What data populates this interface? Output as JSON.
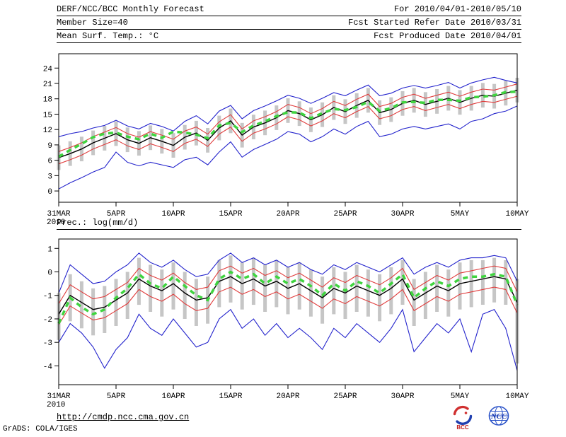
{
  "header": {
    "rows": [
      {
        "left": "DERF/NCC/BCC Monthly Forecast",
        "right": "For 2010/04/01-2010/05/10"
      },
      {
        "left": "Member Size=40",
        "right": "Fcst Started Refer Date 2010/03/31"
      },
      {
        "left": "Mean Surf. Temp.: °C",
        "right": "Fcst Produced Date 2010/04/01"
      }
    ]
  },
  "panel2_title": "Prec.: log(mm/d)",
  "footer": {
    "url": "http://cmdp.ncc.cma.gov.cn",
    "credit": "GrADS: COLA/IGES",
    "bcc_label": "BCC",
    "ncc_label": "NCC"
  },
  "colors": {
    "envelope": "#2222cc",
    "quartile": "#e03c3c",
    "mean": "#000000",
    "obs": "#3fd43f",
    "bar": "#c6c6c6",
    "frame": "#000000"
  },
  "chart_data": [
    {
      "type": "line",
      "title": "Mean Surf. Temp.: °C",
      "x_tick_labels": [
        "31MAR",
        "5APR",
        "10APR",
        "15APR",
        "20APR",
        "25APR",
        "30APR",
        "5MAY",
        "10MAY"
      ],
      "x_tick_positions": [
        0,
        5,
        10,
        15,
        20,
        25,
        30,
        35,
        40
      ],
      "x_sub_label": "2010",
      "y_ticks": [
        0,
        3,
        6,
        9,
        12,
        15,
        18,
        21,
        24
      ],
      "ylim": [
        -2.2,
        26.8
      ],
      "grid": false,
      "legend": "none",
      "series": [
        {
          "name": "ensemble-max",
          "color_key": "envelope",
          "style": "solid",
          "values": [
            10.6,
            11.2,
            11.6,
            12.3,
            12.8,
            13.8,
            12.7,
            12.1,
            13.2,
            12.6,
            11.7,
            13.6,
            14.7,
            13.1,
            15.6,
            16.7,
            14.1,
            15.7,
            16.6,
            17.6,
            18.7,
            18.1,
            17.1,
            18.1,
            19.2,
            18.6,
            19.7,
            20.7,
            18.6,
            19.1,
            20.1,
            20.6,
            20.1,
            20.6,
            21.2,
            20.1,
            21.1,
            21.7,
            22.2,
            21.6,
            21.1
          ]
        },
        {
          "name": "upper-quartile",
          "color_key": "quartile",
          "style": "solid",
          "values": [
            7.7,
            8.5,
            9.4,
            10.6,
            11.5,
            12.4,
            11.2,
            10.5,
            11.6,
            10.9,
            10.1,
            11.7,
            12.5,
            11.1,
            13.5,
            14.9,
            12.1,
            13.7,
            14.5,
            15.5,
            16.9,
            16.3,
            15.1,
            16.1,
            17.5,
            16.7,
            17.9,
            18.9,
            16.5,
            17.1,
            18.3,
            18.9,
            18.1,
            18.7,
            19.3,
            18.5,
            19.3,
            19.9,
            19.7,
            20.3,
            20.9
          ]
        },
        {
          "name": "ensemble-mean",
          "color_key": "mean",
          "style": "solid",
          "values": [
            6.5,
            7.3,
            8.2,
            9.4,
            10.3,
            11.2,
            10.0,
            9.3,
            10.4,
            9.7,
            8.9,
            10.5,
            11.3,
            9.9,
            12.3,
            13.7,
            10.9,
            12.5,
            13.3,
            14.3,
            15.7,
            15.1,
            13.9,
            14.9,
            16.3,
            15.5,
            16.7,
            17.7,
            15.3,
            15.9,
            17.1,
            17.7,
            16.9,
            17.5,
            18.1,
            17.3,
            18.1,
            18.7,
            18.5,
            19.1,
            19.7
          ]
        },
        {
          "name": "lower-quartile",
          "color_key": "quartile",
          "style": "solid",
          "values": [
            5.3,
            6.1,
            7.0,
            8.2,
            9.1,
            10.0,
            8.8,
            8.1,
            9.2,
            8.5,
            7.7,
            9.3,
            10.1,
            8.7,
            11.1,
            12.5,
            9.7,
            11.3,
            12.1,
            13.1,
            14.5,
            13.9,
            12.7,
            13.7,
            15.1,
            14.3,
            15.5,
            16.5,
            14.1,
            14.7,
            15.9,
            16.5,
            15.7,
            16.3,
            16.9,
            16.1,
            16.9,
            17.5,
            17.3,
            17.9,
            18.5
          ]
        },
        {
          "name": "ensemble-min",
          "color_key": "envelope",
          "style": "solid",
          "values": [
            0.4,
            1.6,
            2.6,
            3.7,
            4.6,
            7.6,
            5.6,
            4.9,
            5.6,
            5.1,
            4.6,
            6.1,
            6.6,
            5.1,
            7.6,
            9.6,
            6.6,
            8.1,
            9.1,
            10.1,
            11.6,
            11.1,
            9.6,
            10.6,
            12.1,
            11.1,
            12.6,
            13.6,
            10.6,
            11.1,
            12.1,
            12.6,
            12.1,
            12.6,
            13.1,
            12.1,
            13.6,
            14.1,
            15.1,
            15.6,
            16.6
          ]
        },
        {
          "name": "observation",
          "color_key": "obs",
          "style": "dashed",
          "values": [
            6.7,
            8.0,
            9.2,
            10.5,
            11.2,
            11.4,
            10.6,
            10.1,
            11.2,
            10.4,
            11.6,
            11.4,
            11.0,
            10.3,
            12.8,
            13.3,
            11.5,
            12.8,
            13.6,
            14.6,
            15.4,
            15.3,
            14.2,
            15.2,
            16.0,
            15.8,
            16.4,
            17.4,
            15.6,
            16.2,
            17.3,
            17.4,
            17.2,
            17.8,
            17.8,
            17.6,
            18.3,
            18.4,
            18.7,
            19.3,
            19.4
          ]
        }
      ],
      "bars": {
        "name": "ensemble-spread",
        "low": [
          4.1,
          4.9,
          5.8,
          7.0,
          7.9,
          8.8,
          7.6,
          6.9,
          8.0,
          7.3,
          6.5,
          8.1,
          8.9,
          7.5,
          9.9,
          11.3,
          8.5,
          10.1,
          10.9,
          11.9,
          13.3,
          12.7,
          11.5,
          12.5,
          13.9,
          13.1,
          14.3,
          15.3,
          12.9,
          13.5,
          14.7,
          15.3,
          14.5,
          15.1,
          15.7,
          14.9,
          15.7,
          16.3,
          16.1,
          16.7,
          17.3
        ],
        "high": [
          8.9,
          9.7,
          10.6,
          11.8,
          12.7,
          13.6,
          12.4,
          11.7,
          12.8,
          12.1,
          11.3,
          12.9,
          13.7,
          12.3,
          14.7,
          16.1,
          13.3,
          14.9,
          15.7,
          16.7,
          18.1,
          17.5,
          16.3,
          17.3,
          18.7,
          17.9,
          19.1,
          20.1,
          17.7,
          18.3,
          19.5,
          20.1,
          19.3,
          19.9,
          20.5,
          19.7,
          20.5,
          21.1,
          20.9,
          21.5,
          22.1
        ]
      }
    },
    {
      "type": "line",
      "title": "Prec.: log(mm/d)",
      "x_tick_labels": [
        "31MAR",
        "5APR",
        "10APR",
        "15APR",
        "20APR",
        "25APR",
        "30APR",
        "5MAY",
        "10MAY"
      ],
      "x_tick_positions": [
        0,
        5,
        10,
        15,
        20,
        25,
        30,
        35,
        40
      ],
      "x_sub_label": "2010",
      "y_ticks": [
        -4,
        -3,
        -2,
        -1,
        0,
        1
      ],
      "ylim": [
        -4.8,
        1.4
      ],
      "grid": false,
      "legend": "none",
      "series": [
        {
          "name": "ensemble-max",
          "color_key": "envelope",
          "style": "solid",
          "values": [
            -0.9,
            0.3,
            -0.1,
            -0.5,
            -0.4,
            0.0,
            0.3,
            0.8,
            0.4,
            0.2,
            0.5,
            0.1,
            -0.2,
            -0.1,
            0.5,
            0.8,
            0.4,
            0.6,
            0.3,
            0.5,
            0.2,
            0.4,
            0.1,
            -0.1,
            0.3,
            0.1,
            0.4,
            0.2,
            0.0,
            0.3,
            0.6,
            -0.1,
            0.2,
            0.4,
            0.2,
            0.5,
            0.6,
            0.6,
            0.7,
            0.6,
            -0.4
          ]
        },
        {
          "name": "upper-quartile",
          "color_key": "quartile",
          "style": "solid",
          "values": [
            -1.35,
            -0.55,
            -0.85,
            -1.15,
            -1.05,
            -0.75,
            -0.45,
            0.15,
            -0.15,
            -0.35,
            -0.05,
            -0.45,
            -0.75,
            -0.65,
            0.05,
            0.25,
            -0.05,
            0.15,
            -0.15,
            0.05,
            -0.25,
            -0.05,
            -0.35,
            -0.65,
            -0.25,
            -0.45,
            -0.15,
            -0.35,
            -0.55,
            -0.25,
            0.15,
            -0.75,
            -0.45,
            -0.15,
            -0.35,
            -0.05,
            0.05,
            0.15,
            0.25,
            0.15,
            -0.85
          ]
        },
        {
          "name": "ensemble-mean",
          "color_key": "mean",
          "style": "solid",
          "values": [
            -1.8,
            -1.0,
            -1.3,
            -1.6,
            -1.5,
            -1.2,
            -0.9,
            -0.3,
            -0.6,
            -0.8,
            -0.5,
            -0.9,
            -1.2,
            -1.1,
            -0.4,
            -0.2,
            -0.5,
            -0.3,
            -0.6,
            -0.4,
            -0.7,
            -0.5,
            -0.8,
            -1.1,
            -0.7,
            -0.9,
            -0.6,
            -0.8,
            -1.0,
            -0.7,
            -0.3,
            -1.2,
            -0.9,
            -0.6,
            -0.8,
            -0.5,
            -0.4,
            -0.3,
            -0.2,
            -0.3,
            -1.3
          ]
        },
        {
          "name": "lower-quartile",
          "color_key": "quartile",
          "style": "solid",
          "values": [
            -2.25,
            -1.45,
            -1.75,
            -2.05,
            -1.95,
            -1.65,
            -1.35,
            -0.75,
            -1.05,
            -1.25,
            -0.95,
            -1.35,
            -1.65,
            -1.55,
            -0.85,
            -0.65,
            -0.95,
            -0.75,
            -1.05,
            -0.85,
            -1.15,
            -0.95,
            -1.25,
            -1.55,
            -1.15,
            -1.35,
            -1.05,
            -1.25,
            -1.45,
            -1.15,
            -0.75,
            -1.65,
            -1.35,
            -1.05,
            -1.25,
            -0.95,
            -0.85,
            -0.75,
            -0.65,
            -0.75,
            -1.75
          ]
        },
        {
          "name": "ensemble-min",
          "color_key": "envelope",
          "style": "solid",
          "values": [
            -3.0,
            -2.2,
            -2.6,
            -3.2,
            -4.1,
            -3.3,
            -2.8,
            -1.8,
            -2.4,
            -2.7,
            -2.0,
            -2.6,
            -3.2,
            -3.0,
            -2.0,
            -1.6,
            -2.4,
            -2.0,
            -2.7,
            -2.2,
            -2.8,
            -2.4,
            -2.8,
            -3.3,
            -2.4,
            -2.8,
            -2.2,
            -2.6,
            -3.0,
            -2.4,
            -1.6,
            -3.4,
            -2.8,
            -2.2,
            -2.6,
            -2.0,
            -3.4,
            -1.8,
            -1.6,
            -2.4,
            -4.2
          ]
        },
        {
          "name": "observation",
          "color_key": "obs",
          "style": "dashed",
          "values": [
            -2.2,
            -1.1,
            -1.5,
            -1.8,
            -1.6,
            -1.1,
            -0.7,
            -0.1,
            -0.5,
            -0.7,
            -0.2,
            -0.6,
            -1.0,
            -1.2,
            -0.3,
            0.0,
            -0.3,
            -0.1,
            -0.5,
            -0.2,
            -0.5,
            -0.3,
            -0.6,
            -1.0,
            -0.5,
            -0.8,
            -0.4,
            -0.6,
            -0.9,
            -0.5,
            -0.1,
            -1.1,
            -0.7,
            -0.4,
            -0.6,
            -0.3,
            -0.2,
            -0.2,
            -0.1,
            -0.2,
            -1.4
          ]
        }
      ],
      "bars": {
        "name": "ensemble-spread",
        "low": [
          -2.9,
          -2.1,
          -2.4,
          -2.7,
          -2.6,
          -2.3,
          -2.0,
          -1.4,
          -1.7,
          -1.9,
          -1.6,
          -2.0,
          -2.3,
          -2.2,
          -1.5,
          -1.3,
          -1.6,
          -1.4,
          -1.7,
          -1.5,
          -1.8,
          -1.6,
          -1.9,
          -2.2,
          -1.8,
          -2.0,
          -1.7,
          -1.9,
          -2.1,
          -1.8,
          -1.4,
          -2.3,
          -2.0,
          -1.7,
          -1.9,
          -1.6,
          -1.5,
          -1.4,
          -1.3,
          -1.4,
          -3.9
        ],
        "high": [
          -0.9,
          -0.1,
          -0.4,
          -0.7,
          -0.6,
          -0.3,
          0.0,
          0.6,
          0.3,
          0.1,
          0.4,
          0.0,
          -0.3,
          -0.2,
          0.5,
          0.7,
          0.4,
          0.6,
          0.3,
          0.5,
          0.2,
          0.4,
          0.1,
          -0.2,
          0.2,
          0.0,
          0.3,
          0.1,
          -0.1,
          0.2,
          0.5,
          -0.3,
          0.0,
          0.3,
          0.1,
          0.4,
          0.5,
          0.5,
          0.6,
          0.5,
          -0.3
        ]
      }
    }
  ]
}
